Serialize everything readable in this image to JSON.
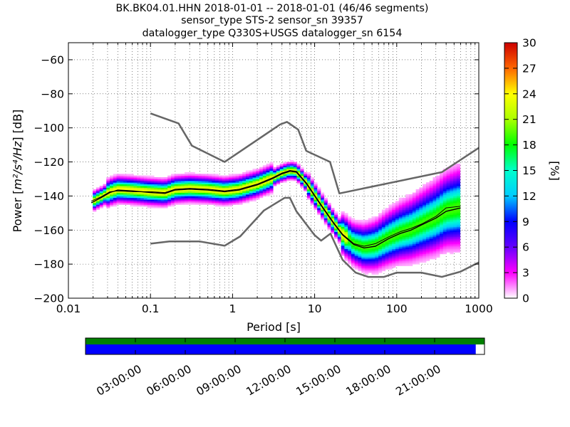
{
  "title_lines": [
    "BK.BK04.01.HHN   2018-01-01 -- 2018-01-01  (46/46 segments)",
    "sensor_type STS-2 sensor_sn 39357",
    "datalogger_type Q330S+USGS datalogger_sn 6154"
  ],
  "chart_data": {
    "type": "heatmap",
    "xlabel": "Period [s]",
    "ylabel_prefix": "Power [",
    "ylabel_math": "m²/s⁴/Hz",
    "ylabel_suffix": "] [dB]",
    "xscale": "log",
    "xlim": [
      0.01,
      1000
    ],
    "ylim": [
      -200,
      -50
    ],
    "x_ticks": [
      0.01,
      0.1,
      1,
      10,
      100,
      1000
    ],
    "x_tick_labels": [
      "0.01",
      "0.1",
      "1",
      "10",
      "100",
      "1000"
    ],
    "y_ticks": [
      -60,
      -80,
      -100,
      -120,
      -140,
      -160,
      -180,
      -200
    ],
    "y_tick_labels": [
      "−60",
      "−80",
      "−100",
      "−120",
      "−140",
      "−160",
      "−180",
      "−200"
    ],
    "grid": "dotted",
    "colorbar": {
      "label": "[%]",
      "min": 0,
      "max": 30,
      "ticks": [
        0,
        3,
        6,
        9,
        12,
        15,
        18,
        21,
        24,
        27,
        30
      ],
      "tick_labels": [
        "0",
        "3",
        "6",
        "9",
        "12",
        "15",
        "18",
        "21",
        "24",
        "27",
        "30"
      ],
      "colormap": "pqlx"
    },
    "noise_model_high": [
      [
        0.1,
        -91.5
      ],
      [
        0.22,
        -97.4
      ],
      [
        0.32,
        -110.5
      ],
      [
        0.8,
        -120
      ],
      [
        3.8,
        -98
      ],
      [
        4.6,
        -96.5
      ],
      [
        6.3,
        -101
      ],
      [
        7.9,
        -113.5
      ],
      [
        15.4,
        -120
      ],
      [
        20,
        -138.5
      ],
      [
        354.8,
        -126
      ],
      [
        10000,
        -80
      ]
    ],
    "noise_model_low": [
      [
        0.1,
        -168
      ],
      [
        0.17,
        -166.7
      ],
      [
        0.4,
        -166.7
      ],
      [
        0.8,
        -169.2
      ],
      [
        1.24,
        -163.7
      ],
      [
        2.4,
        -148.6
      ],
      [
        4.3,
        -141.1
      ],
      [
        5.0,
        -141.1
      ],
      [
        6.0,
        -149
      ],
      [
        10,
        -163
      ],
      [
        12,
        -166.2
      ],
      [
        15.6,
        -162.1
      ],
      [
        21.9,
        -177.5
      ],
      [
        31.6,
        -185
      ],
      [
        45,
        -187.5
      ],
      [
        70,
        -187.5
      ],
      [
        100,
        -185
      ],
      [
        200,
        -185
      ],
      [
        354.8,
        -187.5
      ],
      [
        600,
        -184.4
      ],
      [
        1000,
        -179
      ]
    ],
    "mean_curve": [
      [
        0.019,
        -144
      ],
      [
        0.025,
        -141
      ],
      [
        0.032,
        -138
      ],
      [
        0.04,
        -136.5
      ],
      [
        0.06,
        -137
      ],
      [
        0.1,
        -138
      ],
      [
        0.15,
        -138.5
      ],
      [
        0.2,
        -136.5
      ],
      [
        0.3,
        -136
      ],
      [
        0.5,
        -136.5
      ],
      [
        0.8,
        -137.5
      ],
      [
        1.2,
        -136.5
      ],
      [
        2,
        -133.5
      ],
      [
        3,
        -130
      ],
      [
        4,
        -127
      ],
      [
        5,
        -125.5
      ],
      [
        6,
        -126
      ],
      [
        8,
        -133
      ],
      [
        10,
        -140
      ],
      [
        13,
        -148
      ],
      [
        17,
        -156
      ],
      [
        22,
        -163
      ],
      [
        30,
        -168.5
      ],
      [
        40,
        -170.5
      ],
      [
        55,
        -169.5
      ],
      [
        80,
        -165
      ],
      [
        110,
        -162
      ],
      [
        150,
        -160
      ],
      [
        200,
        -157
      ],
      [
        300,
        -153
      ],
      [
        400,
        -149
      ],
      [
        600,
        -147
      ]
    ],
    "mode_curve": [
      [
        0.019,
        -143
      ],
      [
        0.025,
        -140.5
      ],
      [
        0.032,
        -137.5
      ],
      [
        0.04,
        -137
      ],
      [
        0.06,
        -137.5
      ],
      [
        0.1,
        -137.5
      ],
      [
        0.15,
        -138
      ],
      [
        0.2,
        -136
      ],
      [
        0.3,
        -135.5
      ],
      [
        0.5,
        -136
      ],
      [
        0.8,
        -137
      ],
      [
        1.2,
        -136
      ],
      [
        2,
        -133
      ],
      [
        3,
        -129.5
      ],
      [
        4,
        -126.5
      ],
      [
        5,
        -125
      ],
      [
        6,
        -125.5
      ],
      [
        8,
        -132.5
      ],
      [
        10,
        -139.5
      ],
      [
        13,
        -147.5
      ],
      [
        17,
        -155.5
      ],
      [
        22,
        -162.5
      ],
      [
        30,
        -168
      ],
      [
        40,
        -169.5
      ],
      [
        55,
        -168
      ],
      [
        80,
        -164
      ],
      [
        110,
        -161
      ],
      [
        150,
        -159
      ],
      [
        200,
        -156.5
      ],
      [
        300,
        -152
      ],
      [
        400,
        -147
      ],
      [
        600,
        -146
      ]
    ],
    "time_axis": {
      "labels": [
        "03:00:00",
        "06:00:00",
        "09:00:00",
        "12:00:00",
        "15:00:00",
        "18:00:00",
        "21:00:00"
      ],
      "bar_colors": {
        "available": "#008000",
        "used": "#0000ff"
      },
      "used_fraction": 0.978
    }
  }
}
